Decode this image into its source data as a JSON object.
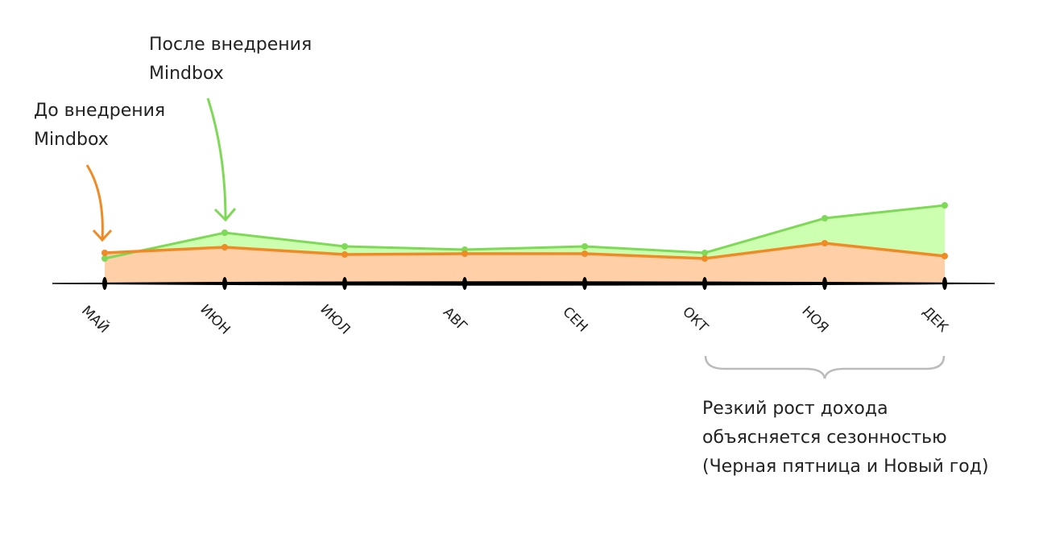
{
  "chart_data": {
    "type": "area",
    "categories": [
      "МАЙ",
      "ИЮН",
      "ИЮЛ",
      "АВГ",
      "СЕН",
      "ОКТ",
      "НОЯ",
      "ДЕК"
    ],
    "series": [
      {
        "name": "После внедрения Mindbox",
        "color": "#7ed957",
        "values": [
          31,
          63,
          46,
          42,
          46,
          38,
          81,
          97
        ]
      },
      {
        "name": "До внедрения Mindbox",
        "color": "#f08a24",
        "values": [
          38,
          45,
          36,
          37,
          37,
          31,
          50,
          34
        ]
      }
    ],
    "annotation": [
      "Резкий рост дохода",
      "объясняется сезонностью",
      "(Черная пятница и Новый год)"
    ]
  }
}
